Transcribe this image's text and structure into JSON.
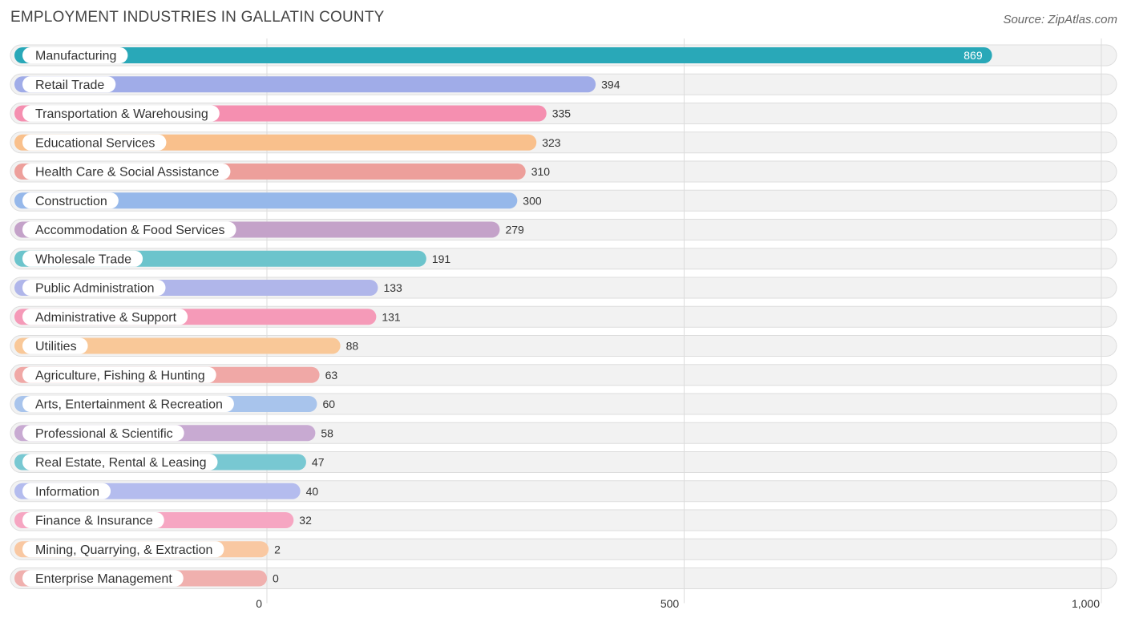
{
  "chart_data": {
    "type": "bar",
    "orientation": "horizontal",
    "title": "EMPLOYMENT INDUSTRIES IN GALLATIN COUNTY",
    "source": "Source: ZipAtlas.com",
    "categories": [
      "Manufacturing",
      "Retail Trade",
      "Transportation & Warehousing",
      "Educational Services",
      "Health Care & Social Assistance",
      "Construction",
      "Accommodation & Food Services",
      "Wholesale Trade",
      "Public Administration",
      "Administrative & Support",
      "Utilities",
      "Agriculture, Fishing & Hunting",
      "Arts, Entertainment & Recreation",
      "Professional & Scientific",
      "Real Estate, Rental & Leasing",
      "Information",
      "Finance & Insurance",
      "Mining, Quarrying, & Extraction",
      "Enterprise Management"
    ],
    "values": [
      869,
      394,
      335,
      323,
      310,
      300,
      279,
      191,
      133,
      131,
      88,
      63,
      60,
      58,
      47,
      40,
      32,
      2,
      0
    ],
    "value_labels": [
      "869",
      "394",
      "335",
      "323",
      "310",
      "300",
      "279",
      "191",
      "133",
      "131",
      "88",
      "63",
      "60",
      "58",
      "47",
      "40",
      "32",
      "2",
      "0"
    ],
    "xlim": [
      0,
      1000
    ],
    "xticks": [
      0,
      500,
      1000
    ],
    "xtick_labels": [
      "0",
      "500",
      "1,000"
    ],
    "grid": true,
    "legend": "none",
    "colors": [
      "#29a8b8",
      "#a0ace8",
      "#f58fb0",
      "#f9c08c",
      "#ed9f9b",
      "#96b8ea",
      "#c4a2c9",
      "#6cc4cc",
      "#b0b6ea",
      "#f59ab8",
      "#f9c898",
      "#f0a8a6",
      "#a8c4ec",
      "#c8aad2",
      "#78c8d2",
      "#b4bcee",
      "#f6a6c2",
      "#f9c8a2",
      "#f0b0ae"
    ]
  }
}
